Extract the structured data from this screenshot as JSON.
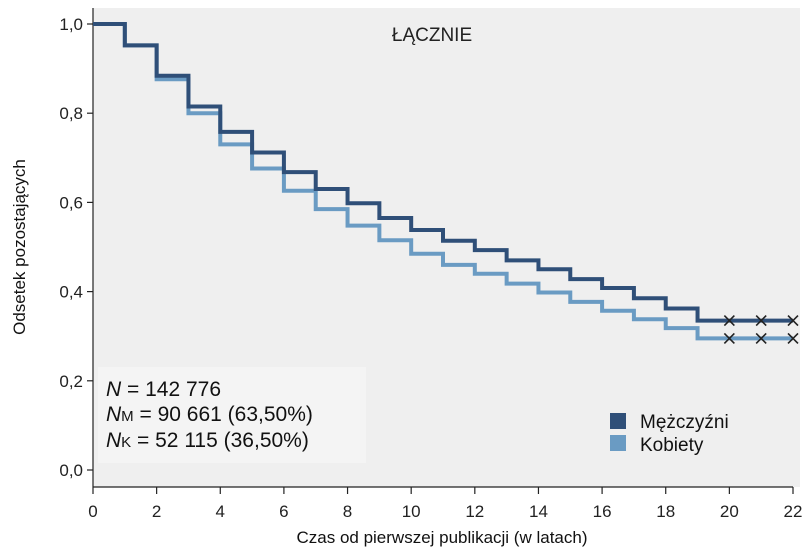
{
  "chart_data": {
    "type": "line",
    "subtype": "kaplan-meier-step",
    "title": "ŁĄCZNIE",
    "xlabel": "Czas od pierwszej publikacji (w latach)",
    "ylabel": "Odsetek pozostających",
    "xlim": [
      0,
      22
    ],
    "ylim": [
      0,
      1
    ],
    "x_ticks": [
      "0",
      "2",
      "4",
      "6",
      "8",
      "10",
      "12",
      "14",
      "16",
      "18",
      "20",
      "22"
    ],
    "y_ticks": [
      "0,0",
      "0,2",
      "0,4",
      "0,6",
      "0,8",
      "1,0"
    ],
    "grid": false,
    "legend_position": "bottom-right",
    "background_color": "#efefef",
    "stats": {
      "n_label": "N",
      "n_value": " = 142 776",
      "nm_label": "N",
      "nm_sub": "M",
      "nm_value": " = 90 661 (63,50%)",
      "nk_label": "N",
      "nk_sub": "K",
      "nk_value": " = 52 115 (36,50%)"
    },
    "series": [
      {
        "name": "Mężczyźni",
        "color": "#2f4f78",
        "x": [
          0,
          1,
          2,
          3,
          4,
          5,
          6,
          7,
          8,
          9,
          10,
          11,
          12,
          13,
          14,
          15,
          16,
          17,
          18,
          19,
          20,
          21,
          22
        ],
        "y": [
          1.0,
          0.952,
          0.884,
          0.815,
          0.758,
          0.712,
          0.668,
          0.63,
          0.598,
          0.565,
          0.538,
          0.514,
          0.493,
          0.47,
          0.45,
          0.428,
          0.408,
          0.385,
          0.362,
          0.335,
          0.335,
          0.335,
          0.335
        ],
        "censor_x": [
          20,
          21,
          22
        ]
      },
      {
        "name": "Kobiety",
        "color": "#6a9bc3",
        "x": [
          0,
          1,
          2,
          3,
          4,
          5,
          6,
          7,
          8,
          9,
          10,
          11,
          12,
          13,
          14,
          15,
          16,
          17,
          18,
          19,
          20,
          21,
          22
        ],
        "y": [
          1.0,
          0.952,
          0.876,
          0.8,
          0.73,
          0.676,
          0.626,
          0.585,
          0.548,
          0.515,
          0.485,
          0.46,
          0.44,
          0.418,
          0.398,
          0.377,
          0.357,
          0.338,
          0.318,
          0.295,
          0.295,
          0.295,
          0.295
        ],
        "censor_x": [
          20,
          21,
          22
        ]
      }
    ]
  }
}
